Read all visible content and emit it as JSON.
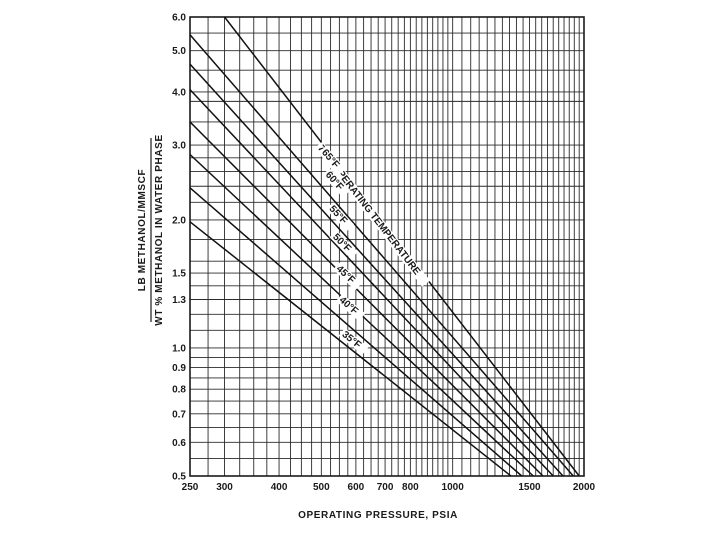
{
  "chart_data": {
    "type": "line",
    "title": "",
    "xlabel": "OPERATING PRESSURE, PSIA",
    "ylabel_top": "LB METHANOL/MMSCF",
    "ylabel_bottom": "WT % METHANOL IN WATER PHASE",
    "x_scale": "log",
    "y_scale": "log",
    "xlim": [
      250,
      2000
    ],
    "ylim": [
      0.5,
      6.0
    ],
    "grid": true,
    "x_ticks": [
      {
        "value": 250,
        "label": "250"
      },
      {
        "value": 300,
        "label": "300"
      },
      {
        "value": 400,
        "label": "400"
      },
      {
        "value": 500,
        "label": "500"
      },
      {
        "value": 600,
        "label": "600"
      },
      {
        "value": 700,
        "label": "700"
      },
      {
        "value": 800,
        "label": "800"
      },
      {
        "value": 1000,
        "label": "1000"
      },
      {
        "value": 1500,
        "label": "1500"
      },
      {
        "value": 2000,
        "label": "2000"
      }
    ],
    "y_ticks": [
      {
        "value": 0.5,
        "label": "0.5"
      },
      {
        "value": 0.6,
        "label": "0.6"
      },
      {
        "value": 0.7,
        "label": "0.7"
      },
      {
        "value": 0.8,
        "label": "0.8"
      },
      {
        "value": 0.9,
        "label": "0.9"
      },
      {
        "value": 1.0,
        "label": "1.0"
      },
      {
        "value": 1.3,
        "label": "1.3"
      },
      {
        "value": 1.5,
        "label": "1.5"
      },
      {
        "value": 2.0,
        "label": "2.0"
      },
      {
        "value": 3.0,
        "label": "3.0"
      },
      {
        "value": 4.0,
        "label": "4.0"
      },
      {
        "value": 5.0,
        "label": "5.0"
      },
      {
        "value": 6.0,
        "label": "6.0"
      }
    ],
    "x_grid": [
      250,
      275,
      300,
      325,
      350,
      375,
      400,
      425,
      450,
      475,
      500,
      525,
      550,
      575,
      600,
      625,
      650,
      675,
      700,
      725,
      750,
      775,
      800,
      825,
      850,
      875,
      900,
      925,
      950,
      975,
      1000,
      1050,
      1100,
      1150,
      1200,
      1250,
      1300,
      1350,
      1400,
      1450,
      1500,
      1550,
      1600,
      1650,
      1700,
      1750,
      1800,
      1850,
      1900,
      1950,
      2000
    ],
    "y_grid": [
      0.5,
      0.55,
      0.6,
      0.65,
      0.7,
      0.75,
      0.8,
      0.85,
      0.9,
      0.95,
      1.0,
      1.1,
      1.2,
      1.3,
      1.4,
      1.5,
      1.6,
      1.8,
      2.0,
      2.2,
      2.4,
      2.6,
      2.8,
      3.0,
      3.4,
      3.8,
      4.0,
      4.5,
      5.0,
      5.5,
      6.0
    ],
    "series": [
      {
        "name": "70°F OPERATING TEMPERATURE",
        "points": [
          [
            300,
            6.0
          ],
          [
            1950,
            0.5
          ]
        ],
        "label_at": [
          490,
          2.95
        ]
      },
      {
        "name": "65°F",
        "points": [
          [
            250,
            5.45
          ],
          [
            1890,
            0.5
          ]
        ],
        "label_at": [
          500,
          2.88
        ]
      },
      {
        "name": "60°F",
        "points": [
          [
            250,
            4.65
          ],
          [
            1790,
            0.5
          ]
        ],
        "label_at": [
          510,
          2.55
        ]
      },
      {
        "name": "55°F",
        "points": [
          [
            250,
            4.05
          ],
          [
            1700,
            0.5
          ]
        ],
        "label_at": [
          520,
          2.12
        ]
      },
      {
        "name": "50°F",
        "points": [
          [
            250,
            3.4
          ],
          [
            1610,
            0.5
          ]
        ],
        "label_at": [
          530,
          1.82
        ]
      },
      {
        "name": "45°F",
        "points": [
          [
            250,
            2.85
          ],
          [
            1530,
            0.5
          ]
        ],
        "label_at": [
          540,
          1.53
        ]
      },
      {
        "name": "40°F",
        "points": [
          [
            250,
            2.38
          ],
          [
            1440,
            0.5
          ]
        ],
        "label_at": [
          548,
          1.29
        ]
      },
      {
        "name": "35°F",
        "points": [
          [
            250,
            1.98
          ],
          [
            1360,
            0.5
          ]
        ],
        "label_at": [
          556,
          1.07
        ]
      }
    ]
  }
}
